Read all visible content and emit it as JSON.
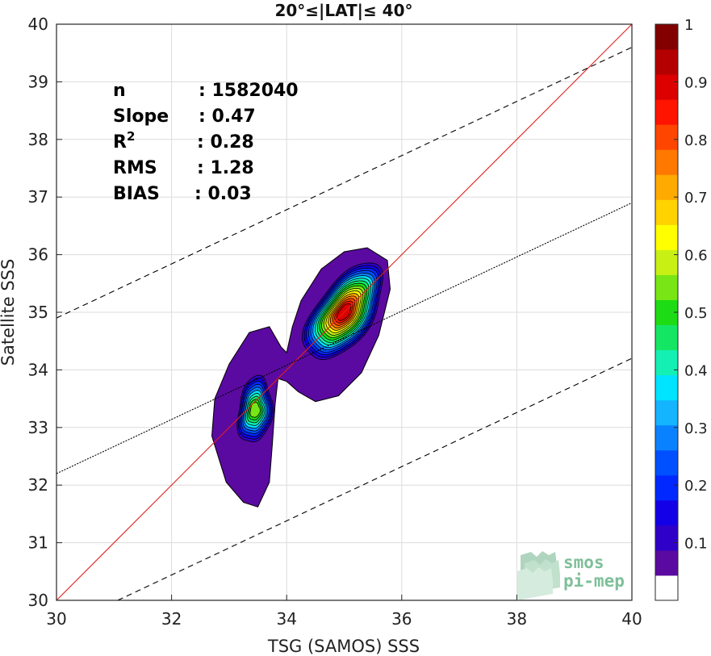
{
  "chart_data": {
    "type": "heatmap",
    "subtype": "density-contour scatter",
    "title": "20°≤|LAT|≤ 40°",
    "xlabel": "TSG (SAMOS) SSS",
    "ylabel": "Satellite SSS",
    "xlim": [
      30,
      40
    ],
    "ylim": [
      30,
      40
    ],
    "xticks": [
      "30",
      "32",
      "34",
      "36",
      "38",
      "40"
    ],
    "yticks": [
      "30",
      "31",
      "32",
      "33",
      "34",
      "35",
      "36",
      "37",
      "38",
      "39",
      "40"
    ],
    "grid": true,
    "stats": [
      {
        "label": "n",
        "value": ": 1582040"
      },
      {
        "label": "Slope",
        "value": ": 0.47"
      },
      {
        "label": "R",
        "sup": "2",
        "value": ": 0.28"
      },
      {
        "label": "RMS",
        "value": ": 1.28"
      },
      {
        "label": "BIAS",
        "value": ": 0.03"
      }
    ],
    "lines": [
      {
        "name": "one-to-one",
        "style": "solid",
        "color": "#e0201b",
        "points": [
          [
            30,
            30
          ],
          [
            40,
            40
          ]
        ]
      },
      {
        "name": "regression",
        "style": "dotted",
        "color": "#000000",
        "points": [
          [
            30,
            32.2
          ],
          [
            40,
            36.9
          ]
        ]
      },
      {
        "name": "upper bound",
        "style": "dashed",
        "color": "#000000",
        "points": [
          [
            30,
            34.9
          ],
          [
            40,
            39.6
          ]
        ]
      },
      {
        "name": "lower bound",
        "style": "dashed",
        "color": "#000000",
        "points": [
          [
            30,
            29.5
          ],
          [
            40,
            34.2
          ]
        ]
      }
    ],
    "density_peaks": [
      {
        "center": [
          35.0,
          35.0
        ],
        "peak": 0.92
      },
      {
        "center": [
          33.45,
          33.3
        ],
        "peak": 0.55
      }
    ],
    "colorbar": {
      "range": [
        0,
        1
      ],
      "ticks": [
        "0.1",
        "0.2",
        "0.3",
        "0.4",
        "0.5",
        "0.6",
        "0.7",
        "0.8",
        "0.9",
        "1"
      ],
      "colors": [
        "#ffffff",
        "#5a0aa0",
        "#2e00c8",
        "#1400e6",
        "#0028ff",
        "#0050ff",
        "#0a82ff",
        "#14b4ff",
        "#00e4ff",
        "#14f0b4",
        "#14e664",
        "#1edc14",
        "#78e614",
        "#c8f014",
        "#ffff00",
        "#ffd200",
        "#ffaa00",
        "#ff7800",
        "#ff4600",
        "#ff1400",
        "#dc0000",
        "#b40000",
        "#820000"
      ]
    }
  },
  "logo": {
    "line1": "smos",
    "line2": "pi-mep"
  }
}
